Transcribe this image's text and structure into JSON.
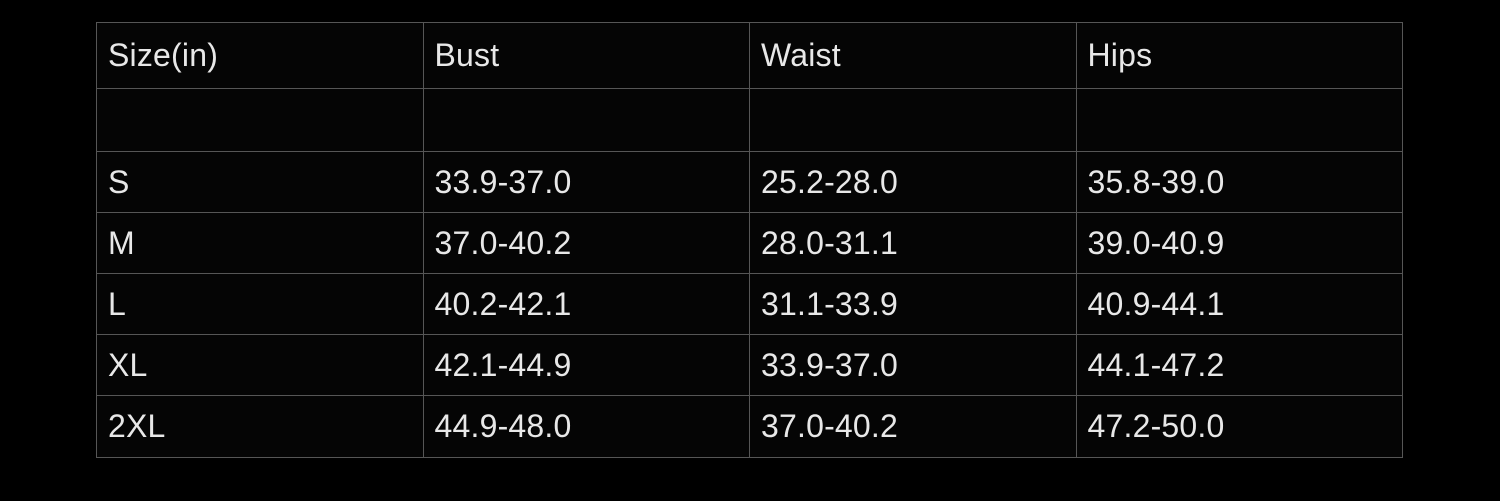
{
  "colors": {
    "page_background": "#000000",
    "table_background": "#050505",
    "grid_border": "#565656",
    "text": "#e8e8e8"
  },
  "table": {
    "headers": [
      "Size(in)",
      "Bust",
      "Waist",
      "Hips"
    ],
    "rows": [
      [
        "",
        "",
        "",
        ""
      ],
      [
        "S",
        "33.9-37.0",
        "25.2-28.0",
        "35.8-39.0"
      ],
      [
        "M",
        "37.0-40.2",
        "28.0-31.1",
        "39.0-40.9"
      ],
      [
        "L",
        "40.2-42.1",
        "31.1-33.9",
        "40.9-44.1"
      ],
      [
        "XL",
        "42.1-44.9",
        "33.9-37.0",
        "44.1-47.2"
      ],
      [
        "2XL",
        "44.9-48.0",
        "37.0-40.2",
        "47.2-50.0"
      ]
    ]
  }
}
